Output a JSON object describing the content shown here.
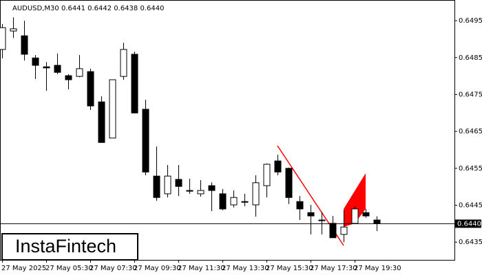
{
  "chart_data": {
    "type": "candlestick",
    "title": "AUDUSD,M30  0.6441 0.6442 0.6438 0.6440",
    "categories": [
      "27 May 2025",
      null,
      null,
      null,
      "27 May 05:30",
      null,
      null,
      null,
      "27 May 07:30",
      null,
      null,
      null,
      "27 May 09:30",
      null,
      null,
      null,
      "27 May 11:30",
      null,
      null,
      null,
      "27 May 13:30",
      null,
      null,
      null,
      "27 May 15:30",
      null,
      null,
      null,
      "27 May 17:30",
      null,
      null,
      null,
      "27 May 19:30",
      null,
      null
    ],
    "open": [
      0.64872,
      0.64922,
      0.64909,
      0.64849,
      0.64825,
      0.64829,
      0.64801,
      0.64799,
      0.64812,
      0.6473,
      0.64632,
      0.64799,
      0.64859,
      0.6471,
      0.64529,
      0.64481,
      0.6452,
      0.6449,
      0.64481,
      0.64503,
      0.64481,
      0.64451,
      0.6446,
      0.64451,
      0.64503,
      0.6457,
      0.6455,
      0.6446,
      0.6443,
      0.6441,
      0.64401,
      0.64371,
      0.64401,
      0.6443,
      0.6441
    ],
    "high": [
      0.64941,
      0.64959,
      0.6495,
      0.64857,
      0.64838,
      0.64861,
      0.64805,
      0.64857,
      0.6482,
      0.64745,
      0.6479,
      0.6489,
      0.64866,
      0.64736,
      0.64609,
      0.64559,
      0.64559,
      0.64522,
      0.64518,
      0.64512,
      0.64494,
      0.6449,
      0.64481,
      0.64531,
      0.64563,
      0.64587,
      0.64552,
      0.64475,
      0.64451,
      0.64432,
      0.64421,
      0.64436,
      0.64447,
      0.6444,
      0.6442
    ],
    "low": [
      0.64848,
      0.64903,
      0.64842,
      0.64792,
      0.6476,
      0.64805,
      0.64764,
      0.64797,
      0.64708,
      0.6462,
      0.64632,
      0.6479,
      0.64699,
      0.64531,
      0.64462,
      0.64471,
      0.64475,
      0.64481,
      0.64473,
      0.64434,
      0.64436,
      0.64444,
      0.64447,
      0.64419,
      0.64471,
      0.64531,
      0.64453,
      0.6441,
      0.64371,
      0.64371,
      0.64362,
      0.6435,
      0.64399,
      0.64416,
      0.6438
    ],
    "close": [
      0.64931,
      0.64928,
      0.64859,
      0.64829,
      0.64822,
      0.6481,
      0.6479,
      0.6482,
      0.64719,
      0.6462,
      0.6479,
      0.64872,
      0.647,
      0.6454,
      0.64471,
      0.64529,
      0.64501,
      0.64488,
      0.6449,
      0.6449,
      0.6444,
      0.64471,
      0.64458,
      0.64511,
      0.64561,
      0.6454,
      0.64471,
      0.6444,
      0.64421,
      0.64408,
      0.64362,
      0.64391,
      0.6444,
      0.64421,
      0.644
    ],
    "ylim": [
      0.64302,
      0.65006
    ],
    "yticks": [
      0.6495,
      0.6485,
      0.6475,
      0.6465,
      0.6455,
      0.6445,
      0.6435
    ],
    "current_price": {
      "value": 0.644,
      "label": "0.6440"
    },
    "up_color": "#ffffff",
    "down_color": "#000000",
    "grid": false
  },
  "brand": "InstaFintech"
}
